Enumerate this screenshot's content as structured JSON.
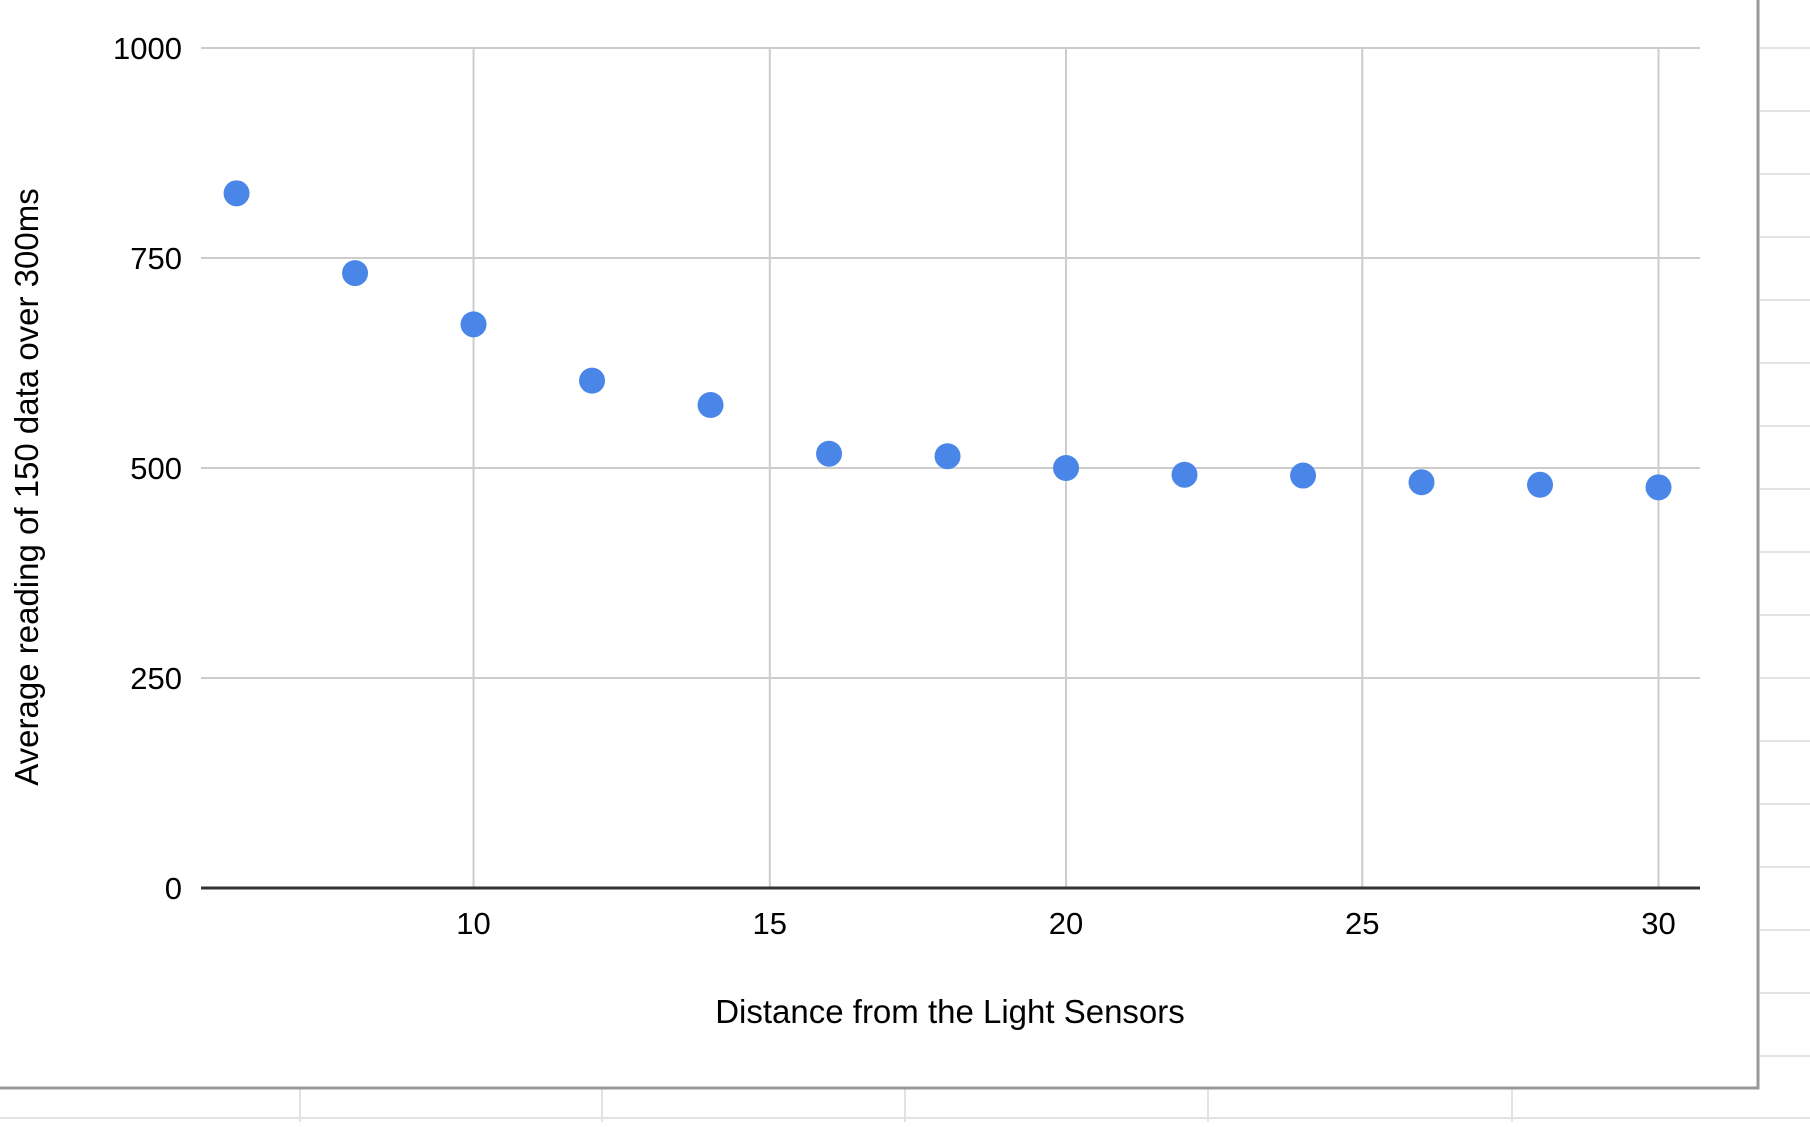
{
  "chart_data": {
    "type": "scatter",
    "title": "",
    "xlabel": "Distance from the Light Sensors",
    "ylabel": "Average reading of 150 data over 300ms",
    "xlim": [
      5.4,
      30.7
    ],
    "ylim": [
      0,
      1000
    ],
    "xticks": [
      10,
      15,
      20,
      25,
      30
    ],
    "yticks": [
      0,
      250,
      500,
      750,
      1000
    ],
    "x_tick_labels": [
      "10",
      "15",
      "20",
      "25",
      "30"
    ],
    "y_tick_labels": [
      "0",
      "250",
      "500",
      "750",
      "1000"
    ],
    "grid": true,
    "legend": "none",
    "series": [
      {
        "color": "#4a86e8",
        "x": [
          6,
          8,
          10,
          12,
          14,
          16,
          18,
          20,
          22,
          24,
          26,
          28,
          30
        ],
        "y": [
          827,
          732,
          671,
          604,
          575,
          517,
          514,
          500,
          492,
          491,
          483,
          480,
          477
        ]
      }
    ]
  },
  "colors": {
    "gridline": "#cccccc",
    "axis_line": "#333333",
    "sheet_border": "#999999",
    "sheet_gridline": "#e2e2e2"
  }
}
